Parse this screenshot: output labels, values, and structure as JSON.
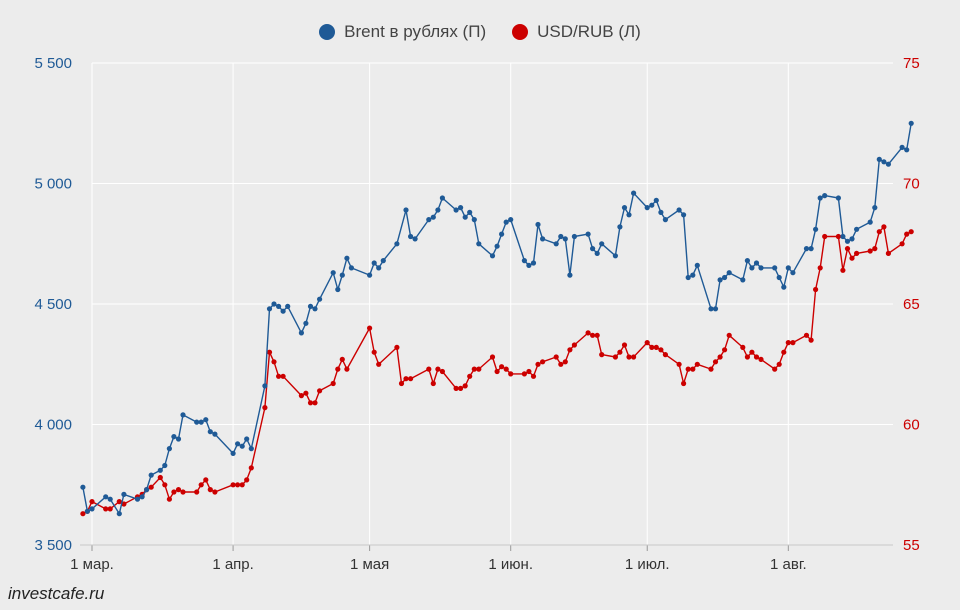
{
  "chart_data": {
    "type": "line",
    "legend_position": "top-center",
    "grid": true,
    "source": "investcafe.ru",
    "x_axis": {
      "range": [
        0,
        176
      ],
      "ticks": [
        {
          "day": 0,
          "label": "1 мар."
        },
        {
          "day": 31,
          "label": "1 апр."
        },
        {
          "day": 61,
          "label": "1 мая"
        },
        {
          "day": 92,
          "label": "1 июн."
        },
        {
          "day": 122,
          "label": "1 июл."
        },
        {
          "day": 153,
          "label": "1 авг."
        }
      ]
    },
    "y_left": {
      "range": [
        3500,
        5500
      ],
      "ticks": [
        3500,
        4000,
        4500,
        5000,
        5500
      ],
      "tick_labels": [
        "3 500",
        "4 000",
        "4 500",
        "5 000",
        "5 500"
      ],
      "color": "#1f5a96"
    },
    "y_right": {
      "range": [
        55,
        75
      ],
      "ticks": [
        55,
        60,
        65,
        70,
        75
      ],
      "tick_labels": [
        "55",
        "60",
        "65",
        "70",
        "75"
      ],
      "color": "#cc0000"
    },
    "series": [
      {
        "name": "Brent в рублях (П)",
        "axis": "left",
        "color": "#1f5a96",
        "points": [
          [
            -2,
            3740
          ],
          [
            -1,
            3640
          ],
          [
            0,
            3650
          ],
          [
            3,
            3700
          ],
          [
            4,
            3690
          ],
          [
            6,
            3630
          ],
          [
            7,
            3710
          ],
          [
            10,
            3690
          ],
          [
            11,
            3700
          ],
          [
            12,
            3730
          ],
          [
            13,
            3790
          ],
          [
            15,
            3810
          ],
          [
            16,
            3830
          ],
          [
            17,
            3900
          ],
          [
            18,
            3950
          ],
          [
            19,
            3940
          ],
          [
            20,
            4040
          ],
          [
            23,
            4010
          ],
          [
            24,
            4010
          ],
          [
            25,
            4020
          ],
          [
            26,
            3970
          ],
          [
            27,
            3960
          ],
          [
            31,
            3880
          ],
          [
            32,
            3920
          ],
          [
            33,
            3910
          ],
          [
            34,
            3940
          ],
          [
            35,
            3900
          ],
          [
            38,
            4160
          ],
          [
            39,
            4480
          ],
          [
            40,
            4500
          ],
          [
            41,
            4490
          ],
          [
            42,
            4470
          ],
          [
            43,
            4490
          ],
          [
            46,
            4380
          ],
          [
            47,
            4420
          ],
          [
            48,
            4490
          ],
          [
            49,
            4480
          ],
          [
            50,
            4520
          ],
          [
            53,
            4630
          ],
          [
            54,
            4560
          ],
          [
            55,
            4620
          ],
          [
            56,
            4690
          ],
          [
            57,
            4650
          ],
          [
            61,
            4620
          ],
          [
            62,
            4670
          ],
          [
            63,
            4650
          ],
          [
            64,
            4680
          ],
          [
            67,
            4750
          ],
          [
            69,
            4890
          ],
          [
            70,
            4780
          ],
          [
            71,
            4770
          ],
          [
            74,
            4850
          ],
          [
            75,
            4860
          ],
          [
            76,
            4890
          ],
          [
            77,
            4940
          ],
          [
            80,
            4890
          ],
          [
            81,
            4900
          ],
          [
            82,
            4860
          ],
          [
            83,
            4880
          ],
          [
            84,
            4850
          ],
          [
            85,
            4750
          ],
          [
            88,
            4700
          ],
          [
            89,
            4740
          ],
          [
            90,
            4790
          ],
          [
            91,
            4840
          ],
          [
            92,
            4850
          ],
          [
            95,
            4680
          ],
          [
            96,
            4660
          ],
          [
            97,
            4670
          ],
          [
            98,
            4830
          ],
          [
            99,
            4770
          ],
          [
            102,
            4750
          ],
          [
            103,
            4780
          ],
          [
            104,
            4770
          ],
          [
            105,
            4620
          ],
          [
            106,
            4780
          ],
          [
            109,
            4790
          ],
          [
            110,
            4730
          ],
          [
            111,
            4710
          ],
          [
            112,
            4750
          ],
          [
            115,
            4700
          ],
          [
            116,
            4820
          ],
          [
            117,
            4900
          ],
          [
            118,
            4870
          ],
          [
            119,
            4960
          ],
          [
            122,
            4900
          ],
          [
            123,
            4910
          ],
          [
            124,
            4930
          ],
          [
            125,
            4880
          ],
          [
            126,
            4850
          ],
          [
            129,
            4890
          ],
          [
            130,
            4870
          ],
          [
            131,
            4610
          ],
          [
            132,
            4620
          ],
          [
            133,
            4660
          ],
          [
            136,
            4480
          ],
          [
            137,
            4480
          ],
          [
            138,
            4600
          ],
          [
            139,
            4610
          ],
          [
            140,
            4630
          ],
          [
            143,
            4600
          ],
          [
            144,
            4680
          ],
          [
            145,
            4650
          ],
          [
            146,
            4670
          ],
          [
            147,
            4650
          ],
          [
            150,
            4650
          ],
          [
            151,
            4610
          ],
          [
            152,
            4570
          ],
          [
            153,
            4650
          ],
          [
            154,
            4630
          ],
          [
            157,
            4730
          ],
          [
            158,
            4730
          ],
          [
            159,
            4810
          ],
          [
            160,
            4940
          ],
          [
            161,
            4950
          ],
          [
            164,
            4940
          ],
          [
            165,
            4780
          ],
          [
            166,
            4760
          ],
          [
            167,
            4770
          ],
          [
            168,
            4810
          ],
          [
            171,
            4840
          ],
          [
            172,
            4900
          ],
          [
            173,
            5100
          ],
          [
            174,
            5090
          ],
          [
            175,
            5080
          ],
          [
            178,
            5150
          ],
          [
            179,
            5140
          ],
          [
            180,
            5250
          ]
        ]
      },
      {
        "name": "USD/RUB (Л)",
        "axis": "right",
        "color": "#cc0000",
        "points": [
          [
            -2,
            56.3
          ],
          [
            -1,
            56.4
          ],
          [
            0,
            56.8
          ],
          [
            3,
            56.5
          ],
          [
            4,
            56.5
          ],
          [
            6,
            56.8
          ],
          [
            7,
            56.7
          ],
          [
            10,
            57.0
          ],
          [
            11,
            57.1
          ],
          [
            12,
            57.3
          ],
          [
            13,
            57.4
          ],
          [
            15,
            57.8
          ],
          [
            16,
            57.5
          ],
          [
            17,
            56.9
          ],
          [
            18,
            57.2
          ],
          [
            19,
            57.3
          ],
          [
            20,
            57.2
          ],
          [
            23,
            57.2
          ],
          [
            24,
            57.5
          ],
          [
            25,
            57.7
          ],
          [
            26,
            57.3
          ],
          [
            27,
            57.2
          ],
          [
            31,
            57.5
          ],
          [
            32,
            57.5
          ],
          [
            33,
            57.5
          ],
          [
            34,
            57.7
          ],
          [
            35,
            58.2
          ],
          [
            38,
            60.7
          ],
          [
            39,
            63.0
          ],
          [
            40,
            62.6
          ],
          [
            41,
            62.0
          ],
          [
            42,
            62.0
          ],
          [
            46,
            61.2
          ],
          [
            47,
            61.3
          ],
          [
            48,
            60.9
          ],
          [
            49,
            60.9
          ],
          [
            50,
            61.4
          ],
          [
            53,
            61.7
          ],
          [
            54,
            62.3
          ],
          [
            55,
            62.7
          ],
          [
            56,
            62.3
          ],
          [
            61,
            64.0
          ],
          [
            62,
            63.0
          ],
          [
            63,
            62.5
          ],
          [
            67,
            63.2
          ],
          [
            68,
            61.7
          ],
          [
            69,
            61.9
          ],
          [
            70,
            61.9
          ],
          [
            74,
            62.3
          ],
          [
            75,
            61.7
          ],
          [
            76,
            62.3
          ],
          [
            77,
            62.2
          ],
          [
            80,
            61.5
          ],
          [
            81,
            61.5
          ],
          [
            82,
            61.6
          ],
          [
            83,
            62.0
          ],
          [
            84,
            62.3
          ],
          [
            85,
            62.3
          ],
          [
            88,
            62.8
          ],
          [
            89,
            62.2
          ],
          [
            90,
            62.4
          ],
          [
            91,
            62.3
          ],
          [
            92,
            62.1
          ],
          [
            95,
            62.1
          ],
          [
            96,
            62.2
          ],
          [
            97,
            62.0
          ],
          [
            98,
            62.5
          ],
          [
            99,
            62.6
          ],
          [
            102,
            62.8
          ],
          [
            103,
            62.5
          ],
          [
            104,
            62.6
          ],
          [
            105,
            63.1
          ],
          [
            106,
            63.3
          ],
          [
            109,
            63.8
          ],
          [
            110,
            63.7
          ],
          [
            111,
            63.7
          ],
          [
            112,
            62.9
          ],
          [
            115,
            62.8
          ],
          [
            116,
            63.0
          ],
          [
            117,
            63.3
          ],
          [
            118,
            62.8
          ],
          [
            119,
            62.8
          ],
          [
            122,
            63.4
          ],
          [
            123,
            63.2
          ],
          [
            124,
            63.2
          ],
          [
            125,
            63.1
          ],
          [
            126,
            62.9
          ],
          [
            129,
            62.5
          ],
          [
            130,
            61.7
          ],
          [
            131,
            62.3
          ],
          [
            132,
            62.3
          ],
          [
            133,
            62.5
          ],
          [
            136,
            62.3
          ],
          [
            137,
            62.6
          ],
          [
            138,
            62.8
          ],
          [
            139,
            63.1
          ],
          [
            140,
            63.7
          ],
          [
            143,
            63.2
          ],
          [
            144,
            62.8
          ],
          [
            145,
            63.0
          ],
          [
            146,
            62.8
          ],
          [
            147,
            62.7
          ],
          [
            150,
            62.3
          ],
          [
            151,
            62.5
          ],
          [
            152,
            63.0
          ],
          [
            153,
            63.4
          ],
          [
            154,
            63.4
          ],
          [
            157,
            63.7
          ],
          [
            158,
            63.5
          ],
          [
            159,
            65.6
          ],
          [
            160,
            66.5
          ],
          [
            161,
            67.8
          ],
          [
            164,
            67.8
          ],
          [
            165,
            66.4
          ],
          [
            166,
            67.3
          ],
          [
            167,
            66.9
          ],
          [
            168,
            67.1
          ],
          [
            171,
            67.2
          ],
          [
            172,
            67.3
          ],
          [
            173,
            68.0
          ],
          [
            174,
            68.2
          ],
          [
            175,
            67.1
          ],
          [
            178,
            67.5
          ],
          [
            179,
            67.9
          ],
          [
            180,
            68.0
          ]
        ]
      }
    ]
  }
}
